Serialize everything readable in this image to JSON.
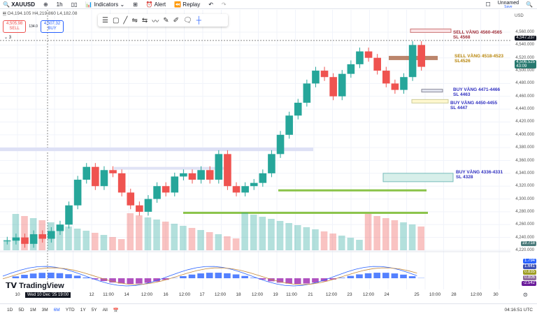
{
  "toolbar": {
    "symbol": "XAUUSD",
    "interval": "1h",
    "indicators": "Indicators",
    "alert": "Alert",
    "replay": "Replay",
    "layout_name": "Unnamed",
    "layout_sub": "Save",
    "currency": "USD"
  },
  "legend": {
    "ohlc": "O4,194.105 H4,219.860 L4,182.08",
    "sell_price": "4,505.98",
    "sell_label": "SELL",
    "spread": "134.0",
    "buy_price": "4,507.32",
    "buy_label": "BUY",
    "collapsed_count": "3"
  },
  "price_axis": [
    "4,560.000",
    "4,540.000",
    "4,520.000",
    "4,500.000",
    "4,480.000",
    "4,460.000",
    "4,440.000",
    "4,420.000",
    "4,400.000",
    "4,380.000",
    "4,360.000",
    "4,340.000",
    "4,320.000",
    "4,300.000",
    "4,280.000",
    "4,260.000",
    "4,240.000",
    "4,220.000"
  ],
  "badges": {
    "crosshair": "4,547.237",
    "last_price": "4,506.525",
    "countdown": "43:09",
    "volume": "19.718",
    "ind": [
      "1.794",
      "1.641",
      "0.835",
      "0.806",
      "-2.542"
    ]
  },
  "colors": {
    "up": "#26a69a",
    "down": "#ef5350",
    "buy_zone": "#2962ff",
    "sell_zone": "#b8860b",
    "sell_zone2": "#b71c1c",
    "support": "#8bc34a",
    "accent": "#2962ff"
  },
  "annotations": [
    {
      "text1": "SELL VÀNG 4560-4565",
      "text2": "SL 4568",
      "color": "#a0303a"
    },
    {
      "text1": "SELL VÀNG 4518-4523",
      "text2": "SL4526",
      "color": "#b8860b"
    },
    {
      "text1": "BUY VÀNG 4471-4466",
      "text2": "SL 4463",
      "color": "#3030c0"
    },
    {
      "text1": "BUY VÀNG 4450-4455",
      "text2": "SL 4447",
      "color": "#3030c0"
    },
    {
      "text1": "BUY VÀNG 4336-4331",
      "text2": "SL 4328",
      "color": "#3030c0"
    }
  ],
  "time_axis": [
    "10",
    "12",
    "11:00",
    "14",
    "12:00",
    "16",
    "12:00",
    "17",
    "12:00",
    "18",
    "12:00",
    "19",
    "11:00",
    "21",
    "12:00",
    "23",
    "12:00",
    "24",
    "25",
    "10:00",
    "28",
    "12:00",
    "30"
  ],
  "time_tooltip": "Wed 10 Dec '25  19:00",
  "brand": "TradingView",
  "ranges": [
    "1D",
    "5D",
    "1M",
    "3M",
    "6M",
    "YTD",
    "1Y",
    "5Y",
    "All"
  ],
  "clock": "04:16:51 UTC",
  "chart_data": {
    "type": "candlestick",
    "closes": [
      4235,
      4240,
      4230,
      4245,
      4238,
      4250,
      4260,
      4290,
      4330,
      4350,
      4320,
      4345,
      4340,
      4310,
      4290,
      4280,
      4300,
      4320,
      4310,
      4335,
      4340,
      4330,
      4345,
      4330,
      4370,
      4320,
      4310,
      4320,
      4325,
      4340,
      4370,
      4400,
      4430,
      4450,
      4480,
      4500,
      4490,
      4460,
      4495,
      4510,
      4530,
      4520,
      4500,
      4480,
      4470,
      4490,
      4540,
      4506
    ]
  }
}
